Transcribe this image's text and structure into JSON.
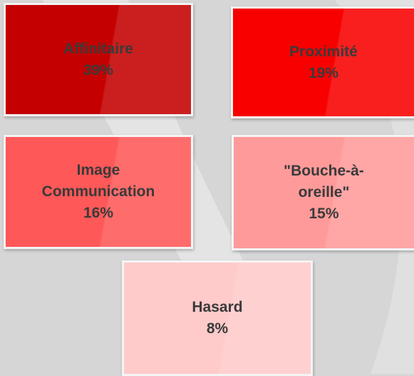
{
  "nodes": [
    {
      "label": "Affinitaire",
      "value": "39%"
    },
    {
      "label": "Proximité",
      "value": "19%"
    },
    {
      "label": "Image Communication",
      "value": "16%"
    },
    {
      "label": "\"Bouche-à-oreille\"",
      "value": "15%"
    },
    {
      "label": "Hasard",
      "value": "8%"
    }
  ]
}
